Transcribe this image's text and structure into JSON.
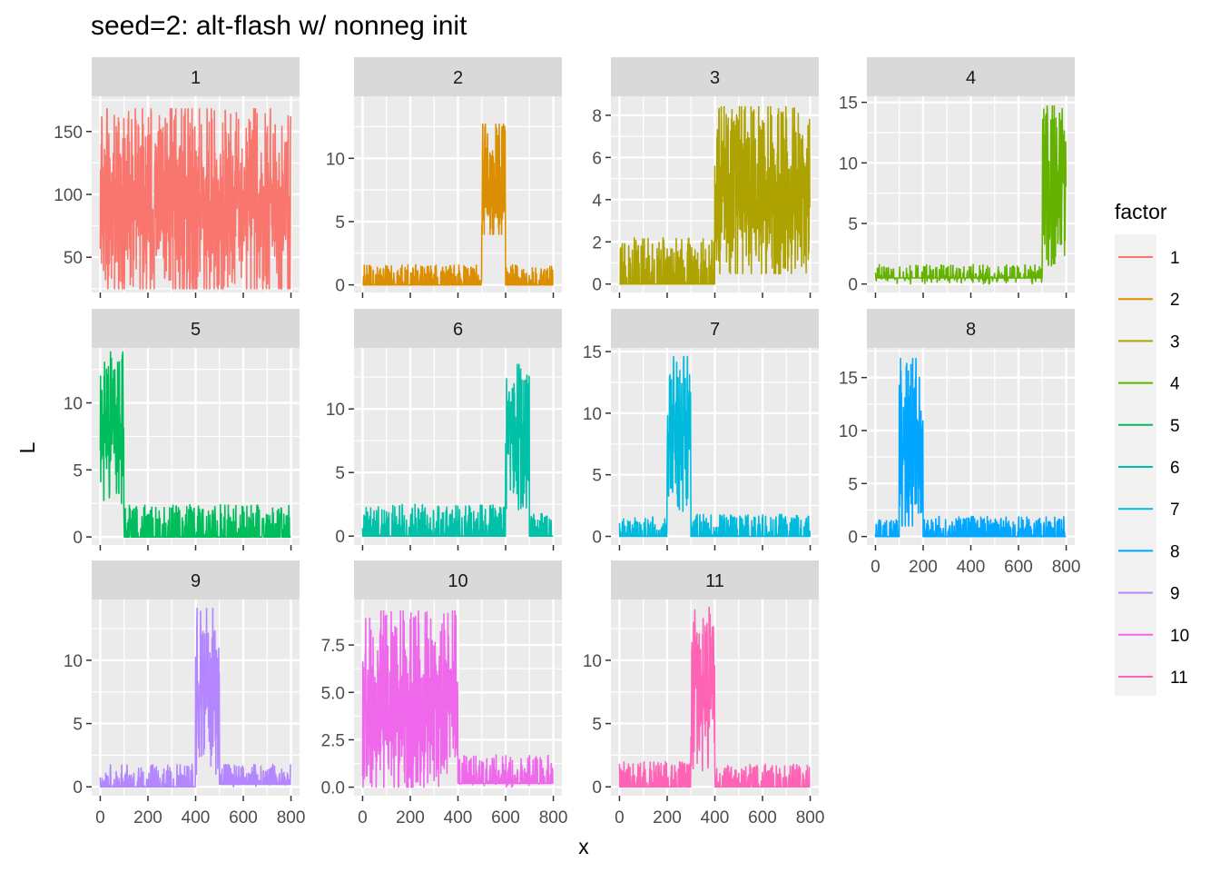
{
  "chart_data": {
    "type": "line",
    "title": "seed=2: alt-flash w/ nonneg init",
    "xlabel": "x",
    "ylabel": "L",
    "legend": {
      "title": "factor",
      "position": "right"
    },
    "grid": true,
    "colors": [
      "#F8766D",
      "#DB8E00",
      "#AEA200",
      "#64B200",
      "#00BD5C",
      "#00C1A7",
      "#00BADE",
      "#00A6FF",
      "#B385FF",
      "#EF67EB",
      "#FF63B6"
    ],
    "x_range": [
      0,
      800
    ],
    "x_ticks": [
      0,
      200,
      400,
      600,
      800
    ],
    "panels": [
      {
        "label": "1",
        "y_ticks": [
          50,
          100,
          150
        ],
        "y_tick_labels": [
          "50",
          "100",
          "150"
        ],
        "ylim": [
          22,
          178
        ],
        "segments": [
          {
            "from": 0,
            "to": 800,
            "low": 25,
            "high": 168,
            "base": 92
          }
        ]
      },
      {
        "label": "2",
        "y_ticks": [
          0,
          5,
          10
        ],
        "y_tick_labels": [
          "0",
          "5",
          "10"
        ],
        "ylim": [
          -0.6,
          14.9
        ],
        "segments": [
          {
            "from": 0,
            "to": 500,
            "low": 0,
            "high": 1.6,
            "base": 0,
            "sparse": true
          },
          {
            "from": 500,
            "to": 600,
            "low": 4,
            "high": 12.7,
            "base": 8
          },
          {
            "from": 600,
            "to": 800,
            "low": 0,
            "high": 1.6,
            "base": 0,
            "sparse": true
          }
        ]
      },
      {
        "label": "3",
        "y_ticks": [
          0,
          2,
          4,
          6,
          8
        ],
        "y_tick_labels": [
          "0",
          "2",
          "4",
          "6",
          "8"
        ],
        "ylim": [
          -0.4,
          8.9
        ],
        "segments": [
          {
            "from": 0,
            "to": 400,
            "low": 0,
            "high": 2.2,
            "base": 0,
            "sparse": true
          },
          {
            "from": 400,
            "to": 800,
            "low": 0.5,
            "high": 8.4,
            "base": 4.2
          }
        ]
      },
      {
        "label": "4",
        "y_ticks": [
          0,
          5,
          10,
          15
        ],
        "y_tick_labels": [
          "0",
          "5",
          "10",
          "15"
        ],
        "ylim": [
          -0.7,
          15.5
        ],
        "segments": [
          {
            "from": 0,
            "to": 700,
            "low": 0,
            "high": 1.6,
            "base": 0.5,
            "sparse": true
          },
          {
            "from": 700,
            "to": 800,
            "low": 1.5,
            "high": 14.7,
            "base": 8.5
          }
        ]
      },
      {
        "label": "5",
        "y_ticks": [
          0,
          5,
          10
        ],
        "y_tick_labels": [
          "0",
          "5",
          "10"
        ],
        "ylim": [
          -0.6,
          14.1
        ],
        "segments": [
          {
            "from": 0,
            "to": 100,
            "low": 2.5,
            "high": 13.8,
            "base": 8.5
          },
          {
            "from": 100,
            "to": 800,
            "low": 0,
            "high": 2.4,
            "base": 0,
            "sparse": true
          }
        ]
      },
      {
        "label": "6",
        "y_ticks": [
          0,
          5,
          10
        ],
        "y_tick_labels": [
          "0",
          "5",
          "10"
        ],
        "ylim": [
          -0.7,
          14.8
        ],
        "segments": [
          {
            "from": 0,
            "to": 600,
            "low": 0,
            "high": 2.5,
            "base": 0,
            "sparse": true
          },
          {
            "from": 600,
            "to": 700,
            "low": 2,
            "high": 13.5,
            "base": 8.5
          },
          {
            "from": 700,
            "to": 800,
            "low": 0,
            "high": 1.8,
            "base": 0,
            "sparse": true
          }
        ]
      },
      {
        "label": "7",
        "y_ticks": [
          0,
          5,
          10,
          15
        ],
        "y_tick_labels": [
          "0",
          "5",
          "10",
          "15"
        ],
        "ylim": [
          -0.7,
          15.3
        ],
        "segments": [
          {
            "from": 0,
            "to": 200,
            "low": 0,
            "high": 1.6,
            "base": 0,
            "sparse": true
          },
          {
            "from": 200,
            "to": 300,
            "low": 2,
            "high": 14.6,
            "base": 8.5
          },
          {
            "from": 300,
            "to": 800,
            "low": 0,
            "high": 1.8,
            "base": 0,
            "sparse": true
          }
        ]
      },
      {
        "label": "8",
        "y_ticks": [
          0,
          5,
          10,
          15
        ],
        "y_tick_labels": [
          "0",
          "5",
          "10",
          "15"
        ],
        "ylim": [
          -0.8,
          17.8
        ],
        "segments": [
          {
            "from": 0,
            "to": 100,
            "low": 0,
            "high": 1.6,
            "base": 0,
            "sparse": true
          },
          {
            "from": 100,
            "to": 200,
            "low": 1,
            "high": 16.8,
            "base": 8.5
          },
          {
            "from": 200,
            "to": 800,
            "low": 0,
            "high": 1.9,
            "base": 0,
            "sparse": true
          }
        ]
      },
      {
        "label": "9",
        "y_ticks": [
          0,
          5,
          10
        ],
        "y_tick_labels": [
          "0",
          "5",
          "10"
        ],
        "ylim": [
          -0.7,
          14.8
        ],
        "segments": [
          {
            "from": 0,
            "to": 400,
            "low": 0,
            "high": 1.8,
            "base": 0,
            "sparse": true
          },
          {
            "from": 400,
            "to": 500,
            "low": 1,
            "high": 14.1,
            "base": 8
          },
          {
            "from": 500,
            "to": 800,
            "low": 0,
            "high": 1.8,
            "base": 0.2,
            "sparse": true
          }
        ]
      },
      {
        "label": "10",
        "y_ticks": [
          0,
          2.5,
          5,
          7.5
        ],
        "y_tick_labels": [
          "0.0",
          "2.5",
          "5.0",
          "7.5"
        ],
        "ylim": [
          -0.45,
          9.9
        ],
        "segments": [
          {
            "from": 0,
            "to": 400,
            "low": 0,
            "high": 9.3,
            "base": 4.3
          },
          {
            "from": 400,
            "to": 800,
            "low": 0,
            "high": 1.7,
            "base": 0.2,
            "sparse": true
          }
        ]
      },
      {
        "label": "11",
        "y_ticks": [
          0,
          5,
          10
        ],
        "y_tick_labels": [
          "0",
          "5",
          "10"
        ],
        "ylim": [
          -0.7,
          14.8
        ],
        "segments": [
          {
            "from": 0,
            "to": 300,
            "low": 0,
            "high": 2,
            "base": 0,
            "sparse": true
          },
          {
            "from": 300,
            "to": 400,
            "low": 1,
            "high": 14.2,
            "base": 8
          },
          {
            "from": 400,
            "to": 800,
            "low": 0,
            "high": 1.8,
            "base": 0,
            "sparse": true
          }
        ]
      }
    ],
    "legend_entries": [
      "1",
      "2",
      "3",
      "4",
      "5",
      "6",
      "7",
      "8",
      "9",
      "10",
      "11"
    ]
  }
}
